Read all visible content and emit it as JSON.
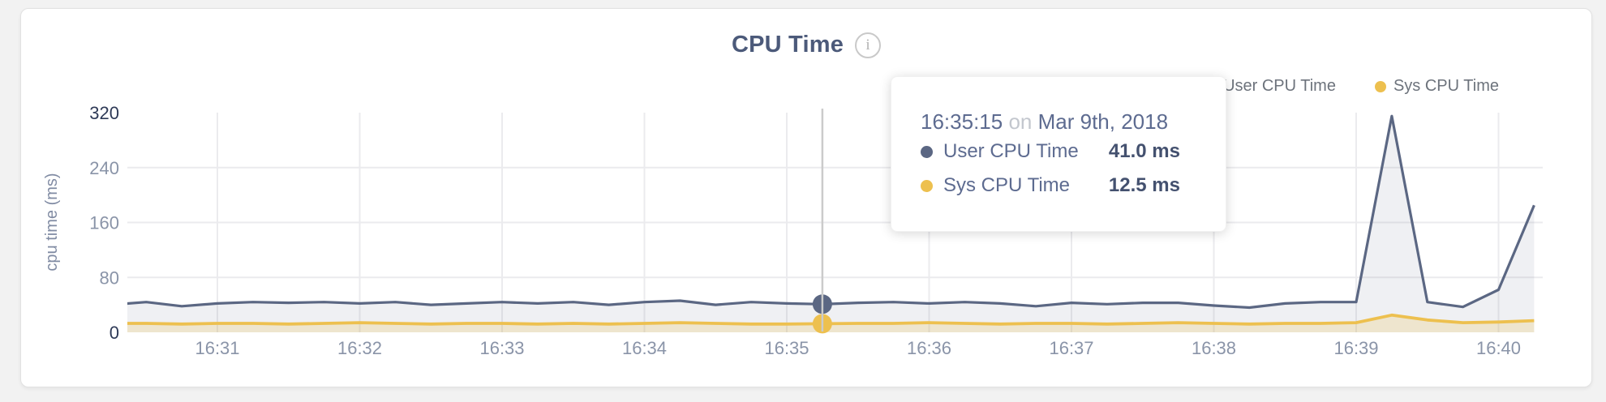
{
  "page": {
    "background_color": "#f2f2f2",
    "card_background": "#ffffff",
    "card_border_color": "#e2e2e2"
  },
  "header": {
    "title": "CPU Time",
    "info_icon_glyph": "i"
  },
  "legend": {
    "position": "top-right",
    "items": [
      {
        "label": "User CPU Time",
        "color": "#5b6783"
      },
      {
        "label": "Sys CPU Time",
        "color": "#edc04f"
      }
    ]
  },
  "tooltip": {
    "time": "16:35:15",
    "connector": "on",
    "date": "Mar 9th, 2018",
    "rows": [
      {
        "label": "User CPU Time",
        "value": "41.0 ms",
        "color": "#5b6783"
      },
      {
        "label": "Sys CPU Time",
        "value": "12.5 ms",
        "color": "#edc04f"
      }
    ]
  },
  "axis_colors": {
    "tick": "#8a94a8",
    "tick_emphasis": "#2e3a57",
    "axis_title": "#808ba3",
    "gridline": "#ebebee",
    "hover_line": "#cbcbcb"
  },
  "chart_data": {
    "type": "area",
    "title": "CPU Time",
    "xlabel": "",
    "ylabel": "cpu time (ms)",
    "ylim": [
      0,
      320
    ],
    "y_ticks": [
      0,
      80,
      160,
      240,
      320
    ],
    "y_gridlines": [
      80,
      160,
      240
    ],
    "x_ticks": [
      "16:31",
      "16:32",
      "16:33",
      "16:34",
      "16:35",
      "16:36",
      "16:37",
      "16:38",
      "16:39",
      "16:40"
    ],
    "grid": true,
    "legend_position": "top-right",
    "x": [
      "16:30:15",
      "16:30:30",
      "16:30:45",
      "16:31:00",
      "16:31:15",
      "16:31:30",
      "16:31:45",
      "16:32:00",
      "16:32:15",
      "16:32:30",
      "16:32:45",
      "16:33:00",
      "16:33:15",
      "16:33:30",
      "16:33:45",
      "16:34:00",
      "16:34:15",
      "16:34:30",
      "16:34:45",
      "16:35:00",
      "16:35:15",
      "16:35:30",
      "16:35:45",
      "16:36:00",
      "16:36:15",
      "16:36:30",
      "16:36:45",
      "16:37:00",
      "16:37:15",
      "16:37:30",
      "16:37:45",
      "16:38:00",
      "16:38:15",
      "16:38:30",
      "16:38:45",
      "16:39:00",
      "16:39:15",
      "16:39:30",
      "16:39:45",
      "16:40:00",
      "16:40:15"
    ],
    "series": [
      {
        "name": "User CPU Time",
        "color": "#5b6783",
        "fill": "rgba(101,112,138,0.10)",
        "values": [
          40,
          44,
          38,
          42,
          44,
          43,
          44,
          42,
          44,
          40,
          42,
          44,
          42,
          44,
          40,
          44,
          46,
          40,
          44,
          42,
          41,
          43,
          44,
          42,
          44,
          42,
          38,
          43,
          41,
          43,
          43,
          39,
          36,
          42,
          44,
          44,
          315,
          44,
          37,
          62,
          185
        ]
      },
      {
        "name": "Sys CPU Time",
        "color": "#edc04f",
        "fill": "rgba(237,192,79,0.22)",
        "values": [
          13,
          13,
          12,
          13,
          13,
          12,
          13,
          14,
          13,
          12,
          13,
          13,
          12,
          13,
          12,
          13,
          14,
          13,
          12,
          12,
          12.5,
          13,
          13,
          14,
          13,
          12,
          13,
          13,
          12,
          13,
          14,
          13,
          12,
          13,
          13,
          14,
          25,
          18,
          14,
          15,
          17
        ]
      }
    ],
    "hover": {
      "time": "16:35:15",
      "date": "Mar 9th, 2018",
      "index": 20,
      "user_ms": 41.0,
      "sys_ms": 12.5
    }
  }
}
